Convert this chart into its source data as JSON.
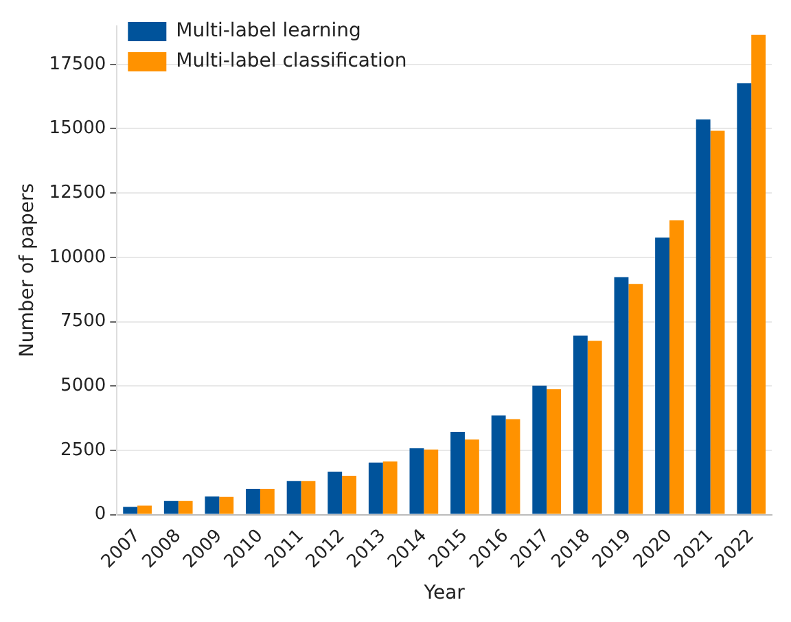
{
  "chart_data": {
    "type": "bar",
    "xlabel": "Year",
    "ylabel": "Number of papers",
    "categories": [
      "2007",
      "2008",
      "2009",
      "2010",
      "2011",
      "2012",
      "2013",
      "2014",
      "2015",
      "2016",
      "2017",
      "2018",
      "2019",
      "2020",
      "2021",
      "2022"
    ],
    "series": [
      {
        "name": "Multi-label learning",
        "color": "#00539b",
        "values": [
          300,
          530,
          700,
          1000,
          1300,
          1670,
          2020,
          2580,
          3220,
          3850,
          5010,
          6960,
          9230,
          10770,
          15360,
          16770
        ]
      },
      {
        "name": "Multi-label classification",
        "color": "#ff9200",
        "values": [
          350,
          530,
          690,
          1000,
          1300,
          1510,
          2060,
          2530,
          2920,
          3710,
          4870,
          6750,
          8960,
          11440,
          14920,
          18650
        ]
      }
    ],
    "ylim": [
      0,
      19000
    ],
    "yticks": [
      0,
      2500,
      5000,
      7500,
      10000,
      12500,
      15000,
      17500
    ],
    "grid": "y",
    "legend": "top left"
  }
}
